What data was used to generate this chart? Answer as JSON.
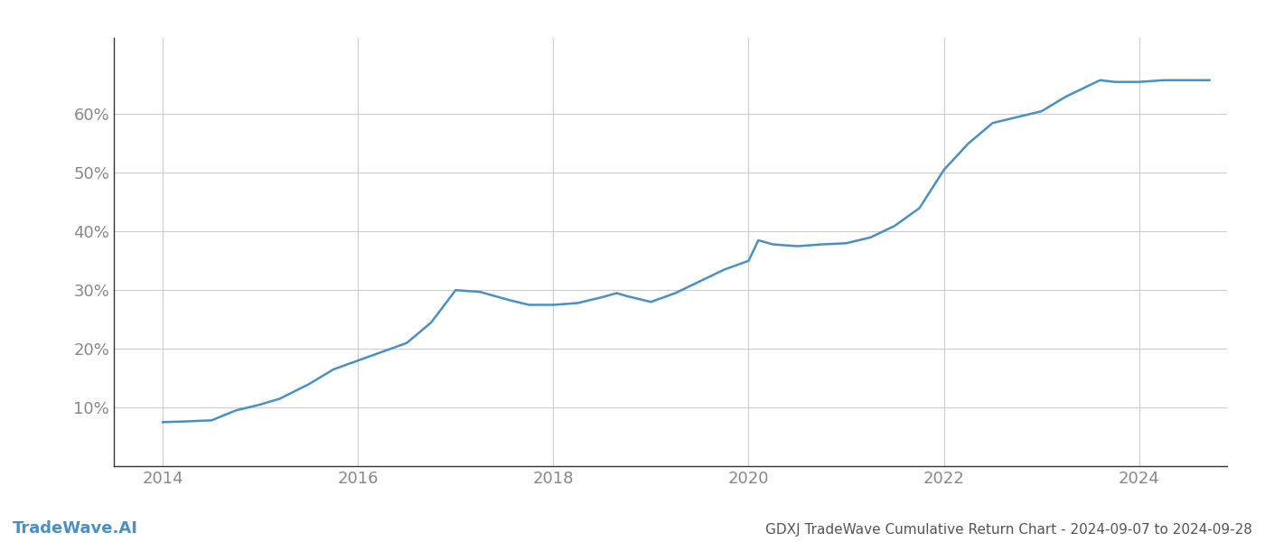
{
  "title": "GDXJ TradeWave Cumulative Return Chart - 2024-09-07 to 2024-09-28",
  "watermark": "TradeWave.AI",
  "line_color": "#4a90c4",
  "background_color": "#ffffff",
  "grid_color": "#cccccc",
  "x_values": [
    2014.0,
    2014.2,
    2014.5,
    2014.75,
    2015.0,
    2015.2,
    2015.5,
    2015.75,
    2016.0,
    2016.25,
    2016.5,
    2016.75,
    2017.0,
    2017.25,
    2017.4,
    2017.55,
    2017.75,
    2018.0,
    2018.25,
    2018.5,
    2018.65,
    2018.75,
    2019.0,
    2019.25,
    2019.5,
    2019.75,
    2020.0,
    2020.1,
    2020.25,
    2020.5,
    2020.75,
    2021.0,
    2021.25,
    2021.5,
    2021.75,
    2022.0,
    2022.25,
    2022.5,
    2022.75,
    2023.0,
    2023.25,
    2023.5,
    2023.6,
    2023.75,
    2024.0,
    2024.25,
    2024.5,
    2024.72
  ],
  "y_values": [
    7.5,
    7.6,
    7.8,
    9.5,
    10.5,
    11.5,
    14.0,
    16.5,
    18.0,
    19.5,
    21.0,
    24.5,
    30.0,
    29.7,
    29.0,
    28.3,
    27.5,
    27.5,
    27.8,
    28.8,
    29.5,
    29.0,
    28.0,
    29.5,
    31.5,
    33.5,
    35.0,
    38.5,
    37.8,
    37.5,
    37.8,
    38.0,
    39.0,
    41.0,
    44.0,
    50.5,
    55.0,
    58.5,
    59.5,
    60.5,
    63.0,
    65.0,
    65.8,
    65.5,
    65.5,
    65.8,
    65.8,
    65.8
  ],
  "xlim": [
    2013.5,
    2024.9
  ],
  "ylim": [
    0,
    73
  ],
  "yticks": [
    10,
    20,
    30,
    40,
    50,
    60
  ],
  "xticks": [
    2014,
    2016,
    2018,
    2020,
    2022,
    2024
  ],
  "line_width": 1.8,
  "title_fontsize": 11,
  "tick_fontsize": 13,
  "watermark_fontsize": 13,
  "watermark_color": "#4a90c4"
}
